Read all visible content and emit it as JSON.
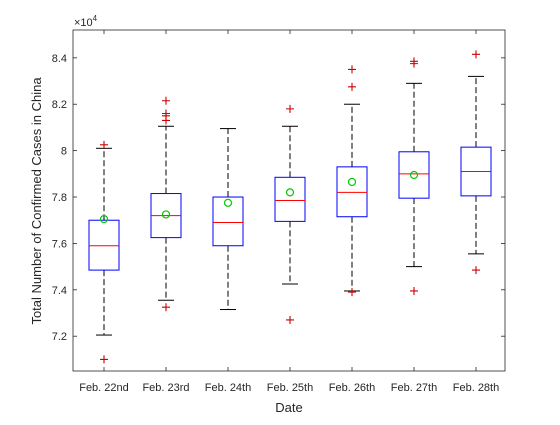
{
  "chart_data": {
    "type": "boxplot",
    "xlabel": "Date",
    "ylabel": "Total Number of Confirmed Cases in China",
    "exponent_label": "×10",
    "exponent_power": "4",
    "ylim": [
      7.05,
      8.52
    ],
    "yticks": [
      7.2,
      7.4,
      7.6,
      7.8,
      8.0,
      8.2,
      8.4
    ],
    "ytick_labels": [
      "7.2",
      "7.4",
      "7.6",
      "7.8",
      "8",
      "8.2",
      "8.4"
    ],
    "grid": false,
    "colors": {
      "box": "#0000ff",
      "median": "#ff0000",
      "whisker": "#000000",
      "outlier": "#cc0000",
      "mean": "#00cc00"
    },
    "categories": [
      "Feb. 22nd",
      "Feb. 23rd",
      "Feb. 24th",
      "Feb. 25th",
      "Feb. 26th",
      "Feb. 27th",
      "Feb. 28th"
    ],
    "boxes": [
      {
        "whisker_low": 7.205,
        "q1": 7.485,
        "median": 7.59,
        "q3": 7.7,
        "whisker_high": 8.01,
        "mean": 7.705,
        "outliers": [
          7.1,
          8.025
        ]
      },
      {
        "whisker_low": 7.355,
        "q1": 7.625,
        "median": 7.72,
        "q3": 7.815,
        "whisker_high": 8.105,
        "mean": 7.725,
        "outliers": [
          7.325,
          8.13,
          8.15,
          8.16,
          8.215
        ]
      },
      {
        "whisker_low": 7.315,
        "q1": 7.59,
        "median": 7.69,
        "q3": 7.8,
        "whisker_high": 8.095,
        "mean": 7.775,
        "outliers": []
      },
      {
        "whisker_low": 7.425,
        "q1": 7.695,
        "median": 7.785,
        "q3": 7.885,
        "whisker_high": 8.105,
        "mean": 7.82,
        "outliers": [
          7.27,
          8.18
        ]
      },
      {
        "whisker_low": 7.395,
        "q1": 7.715,
        "median": 7.82,
        "q3": 7.93,
        "whisker_high": 8.2,
        "mean": 7.865,
        "outliers": [
          7.39,
          8.275,
          8.35
        ]
      },
      {
        "whisker_low": 7.5,
        "q1": 7.795,
        "median": 7.9,
        "q3": 7.995,
        "whisker_high": 8.29,
        "mean": 7.895,
        "outliers": [
          7.395,
          8.375,
          8.385
        ]
      },
      {
        "whisker_low": 7.555,
        "q1": 7.805,
        "median": 7.91,
        "q3": 8.015,
        "whisker_high": 8.32,
        "mean": null,
        "outliers": [
          7.485,
          8.415
        ]
      }
    ]
  }
}
